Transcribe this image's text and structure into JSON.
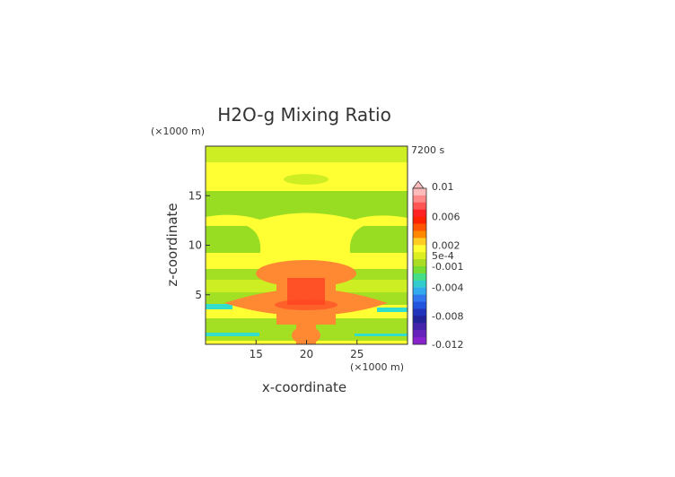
{
  "chart_data": {
    "type": "heatmap",
    "title": "H2O-g Mixing Ratio",
    "time_label": "7200 s",
    "xlabel": "x-coordinate",
    "ylabel": "z-coordinate",
    "x_unit": "(×1000 m)",
    "y_unit": "(×1000 m)",
    "xlim": [
      10,
      30
    ],
    "ylim": [
      0,
      20
    ],
    "x_ticks": [
      "15",
      "20",
      "25"
    ],
    "y_ticks": [
      "5",
      "10",
      "15"
    ],
    "colorbar_labels": [
      "0.01",
      "0.006",
      "0.002",
      "5e-4",
      "-0.001",
      "-0.004",
      "-0.008",
      "-0.012"
    ],
    "colorbar_range": [
      -0.012,
      0.01
    ],
    "colors": {
      "yellow": "#ffff33",
      "yellow_green": "#ccee22",
      "green": "#99dd22",
      "cyan": "#33ddcc",
      "orange": "#ff8833",
      "red": "#ff4422",
      "pink": "#ffbbbb",
      "purple": "#8822cc"
    },
    "legend_position": "right",
    "grid": false
  }
}
